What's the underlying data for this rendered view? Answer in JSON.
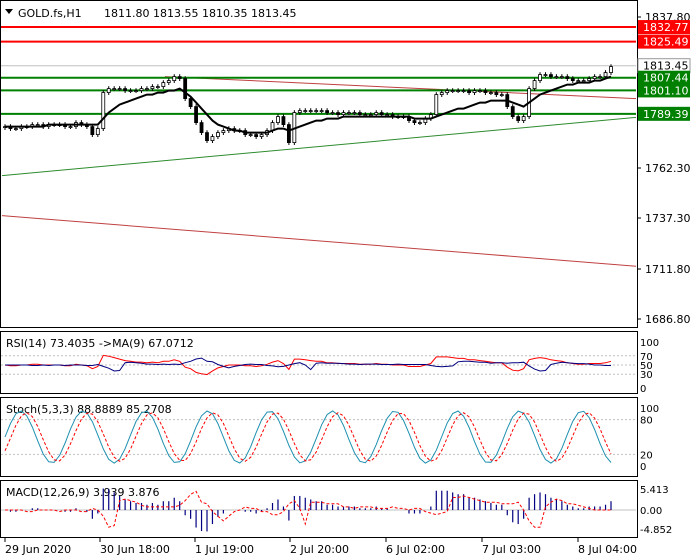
{
  "header": {
    "title": "GOLD.fs,H1",
    "ohlc": "1811.80 1813.55 1810.35 1813.45"
  },
  "colors": {
    "support": "#008000",
    "resistance": "#ff0000",
    "channel_upper": "#c04040",
    "channel_lower": "#2e8b2e",
    "ma": "#000000",
    "macd_signal": "#ff0000",
    "macd_hist": "#000080",
    "rsi": "#ff0000",
    "rsi_ma": "#000080",
    "stoch_main": "#1e90b0",
    "stoch_signal": "#ff0000"
  },
  "price_axis": {
    "labels": [
      "1837.80",
      "1762.30",
      "1737.30",
      "1711.80",
      "1686.80"
    ],
    "min": 1680,
    "max": 1840
  },
  "levels": {
    "resistance": [
      "1832.77",
      "1825.49"
    ],
    "current": "1813.45",
    "support": [
      "1807.44",
      "1801.10",
      "1789.39"
    ]
  },
  "time_axis": [
    "29 Jun 2020",
    "30 Jun 18:00",
    "1 Jul 19:00",
    "2 Jul 20:00",
    "6 Jul 02:00",
    "7 Jul 03:00",
    "8 Jul 04:00"
  ],
  "rsi": {
    "title": "RSI(14) 73.4035 ->MA(9) 67.0712",
    "levels": [
      "100",
      "70",
      "50",
      "30",
      "0"
    ]
  },
  "stoch": {
    "title": "Stoch(5,3,3) 88.8889 85.2708",
    "levels": [
      "100",
      "80",
      "20",
      "0"
    ]
  },
  "macd": {
    "title": "MACD(12,26,9) 3.939 3.876",
    "levels": [
      "5.413",
      "0.00",
      "-4.852"
    ]
  },
  "chart_data": {
    "type": "candlestick",
    "symbol": "GOLD.fs",
    "timeframe": "H1",
    "close_series": [
      1783,
      1782,
      1782,
      1783,
      1783,
      1784,
      1784,
      1783,
      1784,
      1784,
      1784,
      1783,
      1783,
      1785,
      1784,
      1783,
      1779,
      1782,
      1800,
      1802,
      1802,
      1802,
      1801,
      1801,
      1801,
      1802,
      1802,
      1803,
      1803,
      1805,
      1806,
      1808,
      1807,
      1797,
      1793,
      1785,
      1780,
      1776,
      1778,
      1780,
      1781,
      1782,
      1781,
      1781,
      1779,
      1779,
      1778,
      1779,
      1781,
      1785,
      1788,
      1784,
      1775,
      1790,
      1791,
      1791,
      1791,
      1791,
      1791,
      1790,
      1790,
      1789,
      1790,
      1790,
      1790,
      1789,
      1789,
      1789,
      1790,
      1789,
      1789,
      1788,
      1788,
      1788,
      1786,
      1785,
      1785,
      1787,
      1789,
      1799,
      1800,
      1801,
      1801,
      1801,
      1801,
      1800,
      1801,
      1801,
      1800,
      1800,
      1799,
      1799,
      1793,
      1788,
      1786,
      1788,
      1802,
      1806,
      1809,
      1809,
      1808,
      1808,
      1808,
      1807,
      1806,
      1806,
      1806,
      1807,
      1808,
      1808,
      1810,
      1813
    ],
    "ma_series": [
      1783,
      1783,
      1783,
      1783,
      1783,
      1783,
      1783,
      1783,
      1784,
      1784,
      1784,
      1784,
      1784,
      1784,
      1784,
      1784,
      1784,
      1784,
      1787,
      1790,
      1792,
      1794,
      1795,
      1796,
      1797,
      1798,
      1799,
      1799,
      1800,
      1800,
      1801,
      1801,
      1802,
      1800,
      1798,
      1795,
      1792,
      1789,
      1786,
      1784,
      1783,
      1782,
      1781,
      1781,
      1780,
      1780,
      1780,
      1780,
      1780,
      1781,
      1782,
      1782,
      1781,
      1782,
      1783,
      1784,
      1785,
      1786,
      1786,
      1787,
      1787,
      1787,
      1788,
      1788,
      1788,
      1788,
      1788,
      1788,
      1788,
      1788,
      1788,
      1788,
      1788,
      1788,
      1788,
      1787,
      1787,
      1787,
      1787,
      1788,
      1789,
      1790,
      1791,
      1792,
      1792,
      1793,
      1794,
      1795,
      1795,
      1796,
      1796,
      1796,
      1796,
      1795,
      1794,
      1793,
      1795,
      1797,
      1799,
      1800,
      1801,
      1802,
      1803,
      1804,
      1804,
      1805,
      1805,
      1805,
      1806,
      1806,
      1807,
      1808
    ],
    "ylim": [
      1680,
      1840
    ]
  }
}
